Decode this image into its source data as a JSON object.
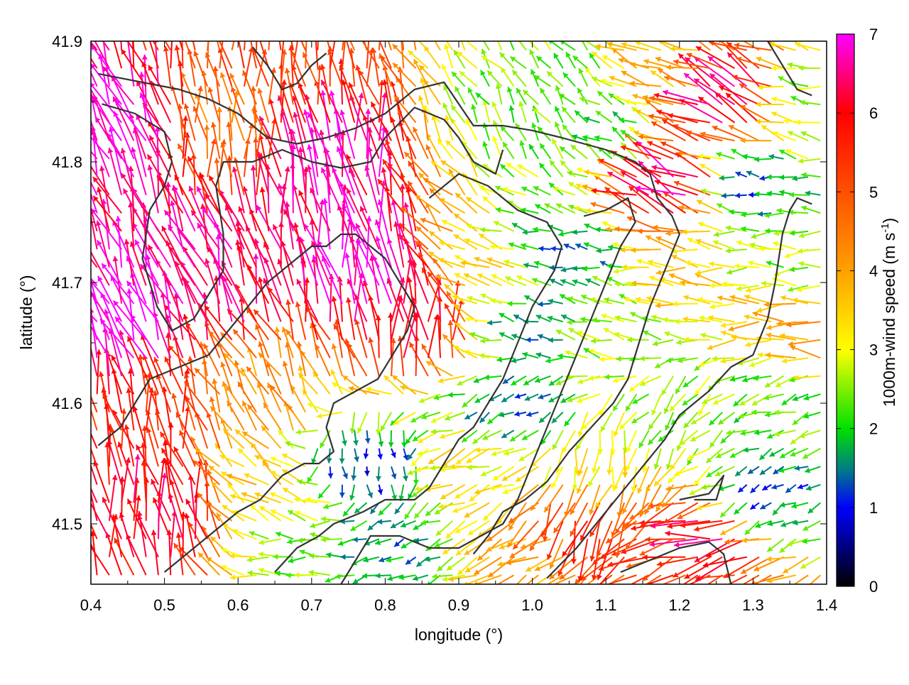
{
  "chart_data": {
    "type": "vector-field",
    "xlabel": "longitude (°)",
    "ylabel": "latitude (°)",
    "xlim": [
      0.4,
      1.4
    ],
    "ylim": [
      41.45,
      41.9
    ],
    "xticks": [
      "0.4",
      "0.5",
      "0.6",
      "0.7",
      "0.8",
      "0.9",
      "1.0",
      "1.1",
      "1.2",
      "1.3",
      "1.4"
    ],
    "yticks": [
      "41.5",
      "41.6",
      "41.7",
      "41.8",
      "41.9"
    ],
    "colorbar": {
      "label": "1000m-wind speed (m s",
      "label_sup": "-1",
      "label_end": ")",
      "range": [
        0,
        7
      ],
      "ticks": [
        "0",
        "1",
        "2",
        "3",
        "4",
        "5",
        "6",
        "7"
      ],
      "stops": [
        {
          "value": 0,
          "color": "#000000"
        },
        {
          "value": 1,
          "color": "#0000ff"
        },
        {
          "value": 1.5,
          "color": "#008080"
        },
        {
          "value": 2,
          "color": "#00e000"
        },
        {
          "value": 3,
          "color": "#ffff00"
        },
        {
          "value": 4,
          "color": "#ffa000"
        },
        {
          "value": 5,
          "color": "#ff5000"
        },
        {
          "value": 6,
          "color": "#ff0000"
        },
        {
          "value": 7,
          "color": "#ff00ff"
        }
      ]
    },
    "wind_grid": {
      "nx": 60,
      "ny": 30,
      "regions": [
        {
          "lon": 0.45,
          "lat": 41.82,
          "speed": 7.0,
          "dir": 112
        },
        {
          "lon": 0.55,
          "lat": 41.7,
          "speed": 6.6,
          "dir": 108
        },
        {
          "lon": 0.48,
          "lat": 41.58,
          "speed": 5.6,
          "dir": 100
        },
        {
          "lon": 0.5,
          "lat": 41.5,
          "speed": 6.2,
          "dir": 98
        },
        {
          "lon": 0.45,
          "lat": 41.66,
          "speed": 7.0,
          "dir": 115
        },
        {
          "lon": 0.72,
          "lat": 41.8,
          "speed": 6.8,
          "dir": 98
        },
        {
          "lon": 0.78,
          "lat": 41.7,
          "speed": 7.0,
          "dir": 100
        },
        {
          "lon": 0.85,
          "lat": 41.66,
          "speed": 6.0,
          "dir": 92
        },
        {
          "lon": 0.66,
          "lat": 41.88,
          "speed": 5.2,
          "dir": 95
        },
        {
          "lon": 0.58,
          "lat": 41.82,
          "speed": 4.5,
          "dir": 95
        },
        {
          "lon": 0.63,
          "lat": 41.6,
          "speed": 4.2,
          "dir": 118
        },
        {
          "lon": 0.65,
          "lat": 41.52,
          "speed": 3.6,
          "dir": 145
        },
        {
          "lon": 0.78,
          "lat": 41.55,
          "speed": 1.2,
          "dir": 280
        },
        {
          "lon": 0.8,
          "lat": 41.48,
          "speed": 1.6,
          "dir": 200
        },
        {
          "lon": 0.7,
          "lat": 41.48,
          "speed": 2.4,
          "dir": 180
        },
        {
          "lon": 0.92,
          "lat": 41.55,
          "speed": 3.2,
          "dir": 200
        },
        {
          "lon": 0.96,
          "lat": 41.7,
          "speed": 3.5,
          "dir": 150
        },
        {
          "lon": 1.0,
          "lat": 41.67,
          "speed": 1.6,
          "dir": 170
        },
        {
          "lon": 1.05,
          "lat": 41.72,
          "speed": 1.4,
          "dir": 175
        },
        {
          "lon": 0.98,
          "lat": 41.6,
          "speed": 1.6,
          "dir": 210
        },
        {
          "lon": 1.0,
          "lat": 41.83,
          "speed": 2.4,
          "dir": 120
        },
        {
          "lon": 1.1,
          "lat": 41.82,
          "speed": 2.0,
          "dir": 150
        },
        {
          "lon": 1.05,
          "lat": 41.88,
          "speed": 2.5,
          "dir": 130
        },
        {
          "lon": 1.12,
          "lat": 41.66,
          "speed": 2.6,
          "dir": 165
        },
        {
          "lon": 1.1,
          "lat": 41.56,
          "speed": 3.2,
          "dir": 260
        },
        {
          "lon": 1.08,
          "lat": 41.5,
          "speed": 5.4,
          "dir": 250
        },
        {
          "lon": 1.02,
          "lat": 41.47,
          "speed": 4.0,
          "dir": 210
        },
        {
          "lon": 1.18,
          "lat": 41.47,
          "speed": 5.2,
          "dir": 200
        },
        {
          "lon": 1.25,
          "lat": 41.49,
          "speed": 6.2,
          "dir": 190
        },
        {
          "lon": 1.2,
          "lat": 41.6,
          "speed": 2.5,
          "dir": 230
        },
        {
          "lon": 1.22,
          "lat": 41.7,
          "speed": 3.6,
          "dir": 175
        },
        {
          "lon": 1.2,
          "lat": 41.78,
          "speed": 6.5,
          "dir": 155
        },
        {
          "lon": 1.18,
          "lat": 41.88,
          "speed": 3.6,
          "dir": 160
        },
        {
          "lon": 1.28,
          "lat": 41.85,
          "speed": 6.6,
          "dir": 150
        },
        {
          "lon": 1.3,
          "lat": 41.78,
          "speed": 1.4,
          "dir": 170
        },
        {
          "lon": 1.35,
          "lat": 41.72,
          "speed": 2.6,
          "dir": 180
        },
        {
          "lon": 1.34,
          "lat": 41.6,
          "speed": 2.2,
          "dir": 200
        },
        {
          "lon": 1.32,
          "lat": 41.52,
          "speed": 1.3,
          "dir": 210
        },
        {
          "lon": 1.38,
          "lat": 41.66,
          "speed": 4.0,
          "dir": 175
        },
        {
          "lon": 1.38,
          "lat": 41.85,
          "speed": 2.6,
          "dir": 170
        }
      ]
    },
    "contours": [
      [
        [
          0.41,
          41.873
        ],
        [
          0.52,
          41.86
        ],
        [
          0.56,
          41.852
        ],
        [
          0.6,
          41.84
        ],
        [
          0.64,
          41.82
        ],
        [
          0.68,
          41.815
        ],
        [
          0.72,
          41.82
        ],
        [
          0.76,
          41.828
        ],
        [
          0.8,
          41.84
        ],
        [
          0.84,
          41.86
        ],
        [
          0.88,
          41.866
        ],
        [
          0.92,
          41.83
        ],
        [
          0.96,
          41.83
        ],
        [
          1.0,
          41.826
        ],
        [
          1.04,
          41.82
        ],
        [
          1.1,
          41.81
        ],
        [
          1.14,
          41.8
        ],
        [
          1.16,
          41.79
        ],
        [
          1.17,
          41.77
        ],
        [
          1.19,
          41.755
        ],
        [
          1.2,
          41.74
        ],
        [
          1.18,
          41.71
        ],
        [
          1.16,
          41.68
        ],
        [
          1.15,
          41.66
        ],
        [
          1.14,
          41.64
        ],
        [
          1.13,
          41.62
        ],
        [
          1.11,
          41.6
        ],
        [
          1.08,
          41.58
        ],
        [
          1.05,
          41.56
        ],
        [
          1.02,
          41.535
        ],
        [
          0.99,
          41.52
        ],
        [
          0.96,
          41.51
        ],
        [
          0.94,
          41.49
        ],
        [
          0.92,
          41.475
        ]
      ],
      [
        [
          0.415,
          41.848
        ],
        [
          0.46,
          41.84
        ],
        [
          0.5,
          41.825
        ],
        [
          0.51,
          41.8
        ],
        [
          0.5,
          41.78
        ],
        [
          0.48,
          41.76
        ],
        [
          0.47,
          41.72
        ],
        [
          0.49,
          41.68
        ],
        [
          0.51,
          41.66
        ],
        [
          0.54,
          41.67
        ],
        [
          0.56,
          41.69
        ],
        [
          0.58,
          41.71
        ],
        [
          0.58,
          41.74
        ],
        [
          0.57,
          41.78
        ],
        [
          0.58,
          41.8
        ],
        [
          0.62,
          41.8
        ],
        [
          0.66,
          41.81
        ],
        [
          0.7,
          41.8
        ],
        [
          0.74,
          41.795
        ],
        [
          0.78,
          41.8
        ],
        [
          0.8,
          41.82
        ],
        [
          0.84,
          41.845
        ],
        [
          0.88,
          41.835
        ],
        [
          0.9,
          41.82
        ],
        [
          0.92,
          41.8
        ],
        [
          0.95,
          41.79
        ],
        [
          0.96,
          41.81
        ]
      ],
      [
        [
          0.41,
          41.565
        ],
        [
          0.44,
          41.58
        ],
        [
          0.48,
          41.62
        ],
        [
          0.52,
          41.63
        ],
        [
          0.56,
          41.64
        ],
        [
          0.6,
          41.67
        ],
        [
          0.64,
          41.7
        ],
        [
          0.66,
          41.71
        ],
        [
          0.7,
          41.73
        ],
        [
          0.72,
          41.73
        ],
        [
          0.74,
          41.74
        ],
        [
          0.76,
          41.74
        ],
        [
          0.78,
          41.73
        ],
        [
          0.8,
          41.72
        ],
        [
          0.82,
          41.7
        ],
        [
          0.84,
          41.68
        ],
        [
          0.83,
          41.66
        ],
        [
          0.81,
          41.64
        ],
        [
          0.79,
          41.62
        ],
        [
          0.76,
          41.61
        ],
        [
          0.73,
          41.6
        ],
        [
          0.72,
          41.58
        ],
        [
          0.73,
          41.56
        ],
        [
          0.71,
          41.55
        ],
        [
          0.69,
          41.55
        ],
        [
          0.66,
          41.54
        ],
        [
          0.63,
          41.52
        ],
        [
          0.6,
          41.51
        ],
        [
          0.56,
          41.49
        ],
        [
          0.52,
          41.47
        ],
        [
          0.5,
          41.46
        ]
      ],
      [
        [
          0.65,
          41.46
        ],
        [
          0.68,
          41.48
        ],
        [
          0.71,
          41.49
        ],
        [
          0.73,
          41.5
        ],
        [
          0.77,
          41.51
        ],
        [
          0.8,
          41.52
        ],
        [
          0.84,
          41.52
        ],
        [
          0.86,
          41.53
        ],
        [
          0.88,
          41.55
        ],
        [
          0.9,
          41.57
        ],
        [
          0.92,
          41.58
        ],
        [
          0.94,
          41.6
        ],
        [
          0.96,
          41.62
        ],
        [
          0.98,
          41.65
        ],
        [
          1.0,
          41.68
        ],
        [
          1.03,
          41.71
        ],
        [
          1.04,
          41.73
        ],
        [
          1.02,
          41.75
        ],
        [
          0.98,
          41.76
        ],
        [
          0.94,
          41.78
        ],
        [
          0.9,
          41.79
        ],
        [
          0.88,
          41.78
        ],
        [
          0.86,
          41.77
        ]
      ],
      [
        [
          0.74,
          41.45
        ],
        [
          0.76,
          41.47
        ],
        [
          0.78,
          41.49
        ],
        [
          0.82,
          41.49
        ],
        [
          0.86,
          41.48
        ],
        [
          0.9,
          41.48
        ],
        [
          0.93,
          41.49
        ],
        [
          0.96,
          41.5
        ],
        [
          0.98,
          41.52
        ],
        [
          1.0,
          41.55
        ],
        [
          1.02,
          41.58
        ],
        [
          1.04,
          41.61
        ],
        [
          1.06,
          41.64
        ],
        [
          1.08,
          41.67
        ],
        [
          1.1,
          41.7
        ],
        [
          1.12,
          41.73
        ],
        [
          1.14,
          41.75
        ],
        [
          1.13,
          41.77
        ],
        [
          1.1,
          41.76
        ],
        [
          1.07,
          41.755
        ]
      ],
      [
        [
          1.02,
          41.455
        ],
        [
          1.06,
          41.48
        ],
        [
          1.1,
          41.51
        ],
        [
          1.14,
          41.54
        ],
        [
          1.18,
          41.57
        ],
        [
          1.2,
          41.59
        ],
        [
          1.24,
          41.61
        ],
        [
          1.27,
          41.63
        ],
        [
          1.3,
          41.64
        ],
        [
          1.32,
          41.67
        ],
        [
          1.33,
          41.7
        ],
        [
          1.34,
          41.74
        ],
        [
          1.35,
          41.76
        ],
        [
          1.36,
          41.77
        ],
        [
          1.38,
          41.765
        ]
      ],
      [
        [
          1.12,
          41.46
        ],
        [
          1.16,
          41.47
        ],
        [
          1.2,
          41.48
        ],
        [
          1.24,
          41.485
        ],
        [
          1.26,
          41.475
        ],
        [
          1.27,
          41.45
        ]
      ],
      [
        [
          1.2,
          41.52
        ],
        [
          1.24,
          41.525
        ],
        [
          1.26,
          41.54
        ],
        [
          1.25,
          41.52
        ],
        [
          1.22,
          41.52
        ]
      ],
      [
        [
          0.62,
          41.895
        ],
        [
          0.64,
          41.88
        ],
        [
          0.66,
          41.86
        ],
        [
          0.68,
          41.865
        ],
        [
          0.7,
          41.88
        ],
        [
          0.72,
          41.89
        ]
      ],
      [
        [
          1.32,
          41.9
        ],
        [
          1.34,
          41.88
        ],
        [
          1.36,
          41.86
        ],
        [
          1.38,
          41.855
        ]
      ]
    ]
  }
}
